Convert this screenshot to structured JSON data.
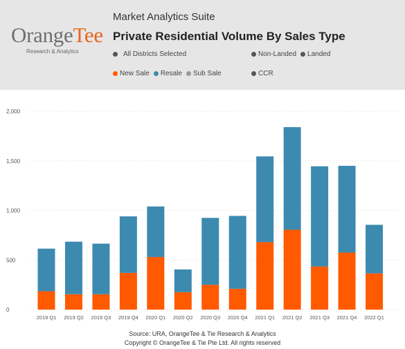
{
  "header": {
    "suite_title": "Market Analytics Suite",
    "main_title": "Private Residential Volume By Sales Type",
    "logo": {
      "word_main": "Orange",
      "word_accent": "Tee",
      "subtitle": "Research & Analytics"
    },
    "filters": {
      "districts": {
        "label": "All Districts Selected",
        "color": "#555555"
      },
      "property_types": [
        {
          "label": "Non-Landed",
          "color": "#555555"
        },
        {
          "label": "Landed",
          "color": "#555555"
        }
      ],
      "sale_types": [
        {
          "label": "New Sale",
          "color": "#ff5a00"
        },
        {
          "label": "Resale",
          "color": "#3d8ab0"
        },
        {
          "label": "Sub Sale",
          "color": "#9a9a9a"
        }
      ],
      "region": {
        "label": "CCR",
        "color": "#555555"
      }
    }
  },
  "colors": {
    "new_sale": "#ff5a00",
    "resale": "#3d8ab0",
    "gridline": "#dddddd",
    "header_bg": "#e6e6e6"
  },
  "chart_data": {
    "type": "bar",
    "stacked": true,
    "categories": [
      "2019 Q1",
      "2019 Q2",
      "2019 Q3",
      "2019 Q4",
      "2020 Q1",
      "2020 Q2",
      "2020 Q3",
      "2020 Q4",
      "2021 Q1",
      "2021 Q2",
      "2021 Q3",
      "2021 Q4",
      "2022 Q1"
    ],
    "series": [
      {
        "name": "New Sale",
        "values": [
          185,
          155,
          155,
          370,
          530,
          175,
          250,
          210,
          680,
          805,
          435,
          575,
          365
        ]
      },
      {
        "name": "Resale",
        "values": [
          430,
          530,
          510,
          570,
          510,
          230,
          675,
          735,
          865,
          1035,
          1010,
          875,
          490
        ]
      },
      {
        "name": "Sub Sale",
        "values": [
          0,
          0,
          0,
          0,
          0,
          0,
          0,
          0,
          0,
          0,
          0,
          0,
          0
        ]
      }
    ],
    "y_ticks": [
      "2,000",
      "1,500",
      "1,000",
      "500",
      "0"
    ],
    "y_tick_values": [
      2000,
      1500,
      1000,
      500,
      0
    ],
    "ylim": [
      0,
      2000
    ],
    "grid": true,
    "title": "",
    "xlabel": "",
    "ylabel": ""
  },
  "footer": {
    "source": "Source: URA, OrangeTee & Tie Research & Analytics",
    "copyright": "Copyright © OrangeTee & Tie Pte Ltd. All rights reserved"
  }
}
